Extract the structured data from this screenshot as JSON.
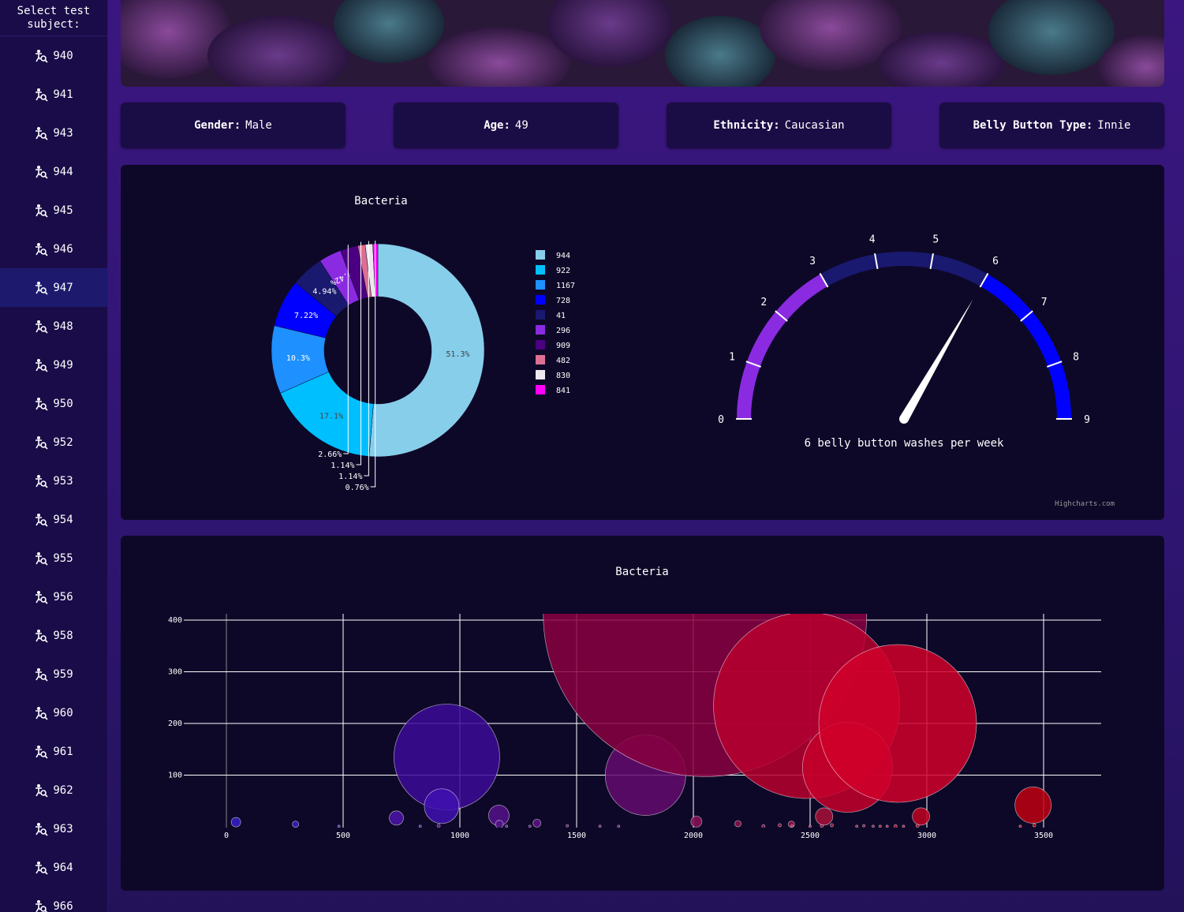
{
  "sidebar": {
    "title": "Select test subject:",
    "active": "947",
    "items": [
      "940",
      "941",
      "943",
      "944",
      "945",
      "946",
      "947",
      "948",
      "949",
      "950",
      "952",
      "953",
      "954",
      "955",
      "956",
      "958",
      "959",
      "960",
      "961",
      "962",
      "963",
      "964",
      "966"
    ]
  },
  "demographics": [
    {
      "label": "Gender:",
      "value": "Male"
    },
    {
      "label": "Age:",
      "value": "49"
    },
    {
      "label": "Ethnicity:",
      "value": "Caucasian"
    },
    {
      "label": "Belly Button Type:",
      "value": "Innie"
    }
  ],
  "colors": {
    "background": "#2e1570",
    "panel": "#0e0828",
    "card": "#1a0c45",
    "sidebar": "#190c48",
    "sidebar_active": "#1d1a6e"
  },
  "chart_data": [
    {
      "type": "pie",
      "title": "Bacteria",
      "hole": true,
      "labels": [
        "944",
        "922",
        "1167",
        "728",
        "41",
        "296",
        "909",
        "482",
        "830",
        "841"
      ],
      "values": [
        51.3,
        17.1,
        10.3,
        7.22,
        4.94,
        3.42,
        2.66,
        1.14,
        1.14,
        0.76
      ],
      "slice_labels": [
        "51.3%",
        "17.1%",
        "10.3%",
        "7.22%",
        "4.94%",
        "3.42%",
        "2.66%",
        "1.14%",
        "1.14%",
        "0.76%"
      ],
      "colors": [
        "#87ceeb",
        "#00bfff",
        "#1e90ff",
        "#0000ff",
        "#191970",
        "#8a2be2",
        "#4b0082",
        "#db7093",
        "#f0e8f0",
        "#ff00ff"
      ],
      "legend": "right"
    },
    {
      "type": "gauge",
      "min": 0,
      "max": 9,
      "value": 6,
      "ticks": [
        "0",
        "1",
        "2",
        "3",
        "4",
        "5",
        "6",
        "7",
        "8",
        "9"
      ],
      "band_colors": [
        "#8a2be2",
        "#8a2be2",
        "#8a2be2",
        "#191970",
        "#191970",
        "#191970",
        "#0000ff",
        "#0000ff",
        "#0000ff"
      ],
      "label": "6 belly button washes per week",
      "credit": "Highcharts.com"
    },
    {
      "type": "scatter",
      "title": "Bacteria",
      "xlim": [
        0,
        3700
      ],
      "ylim": [
        0,
        410
      ],
      "x_ticks": [
        0,
        500,
        1000,
        1500,
        2000,
        2500,
        3000,
        3500
      ],
      "y_ticks": [
        100,
        200,
        300,
        400
      ],
      "grid": true,
      "points": [
        {
          "x": 41,
          "y": 9,
          "r": 6,
          "color": "#3420c8"
        },
        {
          "x": 296,
          "y": 5,
          "r": 4,
          "color": "#3420c8"
        },
        {
          "x": 482,
          "y": 1,
          "r": 1,
          "color": "#4020b8"
        },
        {
          "x": 728,
          "y": 17,
          "r": 9,
          "color": "#4a14a8"
        },
        {
          "x": 830,
          "y": 1,
          "r": 1,
          "color": "#4d14a0"
        },
        {
          "x": 909,
          "y": 2,
          "r": 2,
          "color": "#4d14a0"
        },
        {
          "x": 944,
          "y": 135,
          "r": 67,
          "color": "#3c0a96"
        },
        {
          "x": 922,
          "y": 40,
          "r": 22,
          "color": "#4010b0"
        },
        {
          "x": 1167,
          "y": 22,
          "r": 13,
          "color": "#54128a"
        },
        {
          "x": 1169,
          "y": 5,
          "r": 5,
          "color": "#54128a"
        },
        {
          "x": 1200,
          "y": 1,
          "r": 1,
          "color": "#54128a"
        },
        {
          "x": 1300,
          "y": 1,
          "r": 1,
          "color": "#54128a"
        },
        {
          "x": 1330,
          "y": 7,
          "r": 5,
          "color": "#5c1088"
        },
        {
          "x": 1460,
          "y": 2,
          "r": 1,
          "color": "#5c1088"
        },
        {
          "x": 1600,
          "y": 1,
          "r": 1,
          "color": "#5c1088"
        },
        {
          "x": 1680,
          "y": 1,
          "r": 1,
          "color": "#5c1088"
        },
        {
          "x": 1795,
          "y": 100,
          "r": 51,
          "color": "#640a6e"
        },
        {
          "x": 2013,
          "y": 10,
          "r": 7,
          "color": "#8a1058"
        },
        {
          "x": 2191,
          "y": 6,
          "r": 4,
          "color": "#8a1050"
        },
        {
          "x": 2300,
          "y": 1,
          "r": 2,
          "color": "#8a1050"
        },
        {
          "x": 2370,
          "y": 3,
          "r": 2,
          "color": "#961048"
        },
        {
          "x": 2420,
          "y": 5,
          "r": 4,
          "color": "#961048"
        },
        {
          "x": 2550,
          "y": 2,
          "r": 2,
          "color": "#9a1040"
        },
        {
          "x": 2500,
          "y": 1,
          "r": 1,
          "color": "#9a1040"
        },
        {
          "x": 2593,
          "y": 3,
          "r": 2,
          "color": "#9a1040"
        },
        {
          "x": 2423,
          "y": 2,
          "r": 1,
          "color": "#9a1040"
        },
        {
          "x": 2560,
          "y": 20,
          "r": 11,
          "color": "#a8103a"
        },
        {
          "x": 2700,
          "y": 1,
          "r": 1,
          "color": "#a8103a"
        },
        {
          "x": 2730,
          "y": 2,
          "r": 1,
          "color": "#a8103a"
        },
        {
          "x": 2770,
          "y": 1,
          "r": 1,
          "color": "#a8103a"
        },
        {
          "x": 2800,
          "y": 1,
          "r": 1,
          "color": "#a8103a"
        },
        {
          "x": 2830,
          "y": 1,
          "r": 1,
          "color": "#a8103a"
        },
        {
          "x": 2866,
          "y": 1,
          "r": 2,
          "color": "#b0102e"
        },
        {
          "x": 2900,
          "y": 1,
          "r": 1,
          "color": "#b0102e"
        },
        {
          "x": 2960,
          "y": 2,
          "r": 2,
          "color": "#b0102e"
        },
        {
          "x": 2050,
          "y": 410,
          "r": 205,
          "color": "#880040"
        },
        {
          "x": 2485,
          "y": 235,
          "r": 118,
          "color": "#b8002e"
        },
        {
          "x": 2660,
          "y": 115,
          "r": 57,
          "color": "#c4002a"
        },
        {
          "x": 2875,
          "y": 200,
          "r": 100,
          "color": "#d0002a"
        },
        {
          "x": 2975,
          "y": 20,
          "r": 11,
          "color": "#c00020"
        },
        {
          "x": 3400,
          "y": 1,
          "r": 1,
          "color": "#c00010"
        },
        {
          "x": 3460,
          "y": 3,
          "r": 2,
          "color": "#c00010"
        },
        {
          "x": 3455,
          "y": 42,
          "r": 23,
          "color": "#c00010"
        }
      ]
    }
  ]
}
